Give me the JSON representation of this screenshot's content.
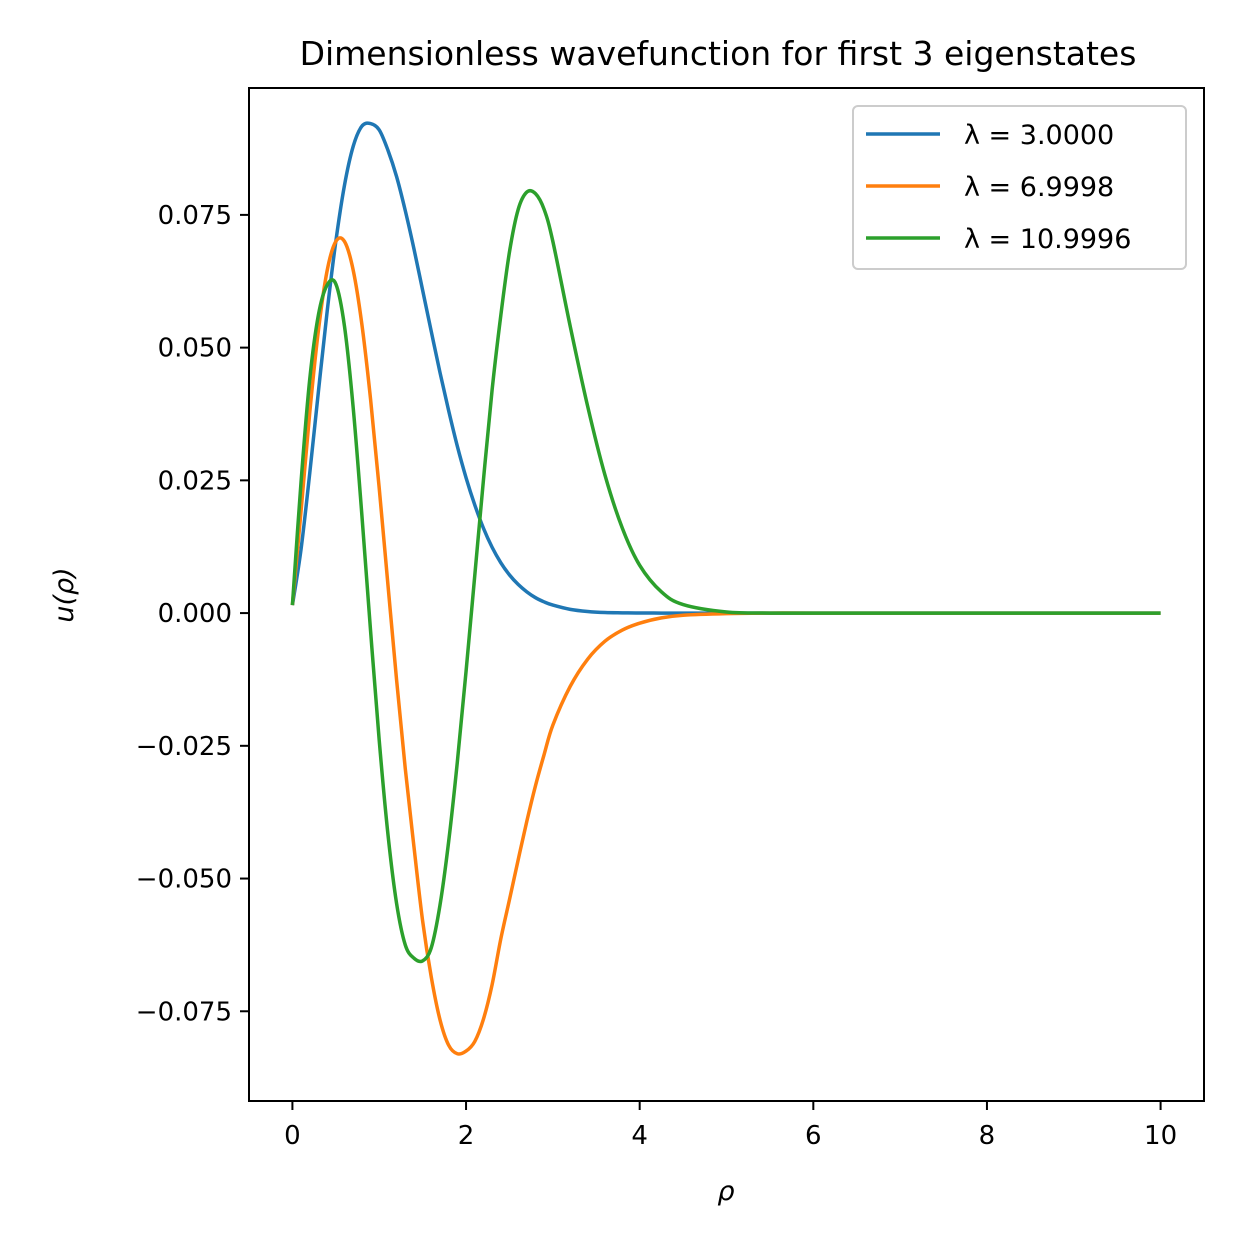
{
  "chart_data": {
    "type": "line",
    "title": "Dimensionless wavefunction for first 3 eigenstates",
    "xlabel": "ρ",
    "ylabel": "u(ρ)",
    "xlim": [
      -0.5,
      10.5
    ],
    "ylim": [
      -0.0919,
      0.0989
    ],
    "x_ticks": [
      0,
      2,
      4,
      6,
      8,
      10
    ],
    "x_tick_labels": [
      "0",
      "2",
      "4",
      "6",
      "8",
      "10"
    ],
    "y_ticks": [
      0.075,
      0.05,
      0.025,
      0.0,
      -0.025,
      -0.05,
      -0.075
    ],
    "y_tick_labels": [
      "0.075",
      "0.050",
      "0.025",
      "0.000",
      "−0.025",
      "−0.050",
      "−0.075"
    ],
    "grid": false,
    "legend_position": "top-right",
    "series": [
      {
        "name": "λ = 3.0000",
        "color": "#1f77b4",
        "x": [
          0,
          0.1,
          0.2,
          0.3,
          0.4,
          0.5,
          0.6,
          0.7,
          0.8,
          0.9,
          1.0,
          1.1,
          1.2,
          1.3,
          1.4,
          1.5,
          1.6,
          1.7,
          1.8,
          1.9,
          2.0,
          2.1,
          2.2,
          2.3,
          2.4,
          2.5,
          2.6,
          2.7,
          2.8,
          2.9,
          3.0,
          3.2,
          3.4,
          3.6,
          3.8,
          4.0,
          4.25,
          4.5,
          5.0,
          5.5,
          6.0,
          7.0,
          8.0,
          9.0,
          10.0
        ],
        "y": [
          0.0015,
          0.0121,
          0.0264,
          0.0418,
          0.0568,
          0.07,
          0.0806,
          0.0879,
          0.0917,
          0.0922,
          0.091,
          0.0872,
          0.0822,
          0.0758,
          0.0686,
          0.0608,
          0.053,
          0.0453,
          0.0381,
          0.0314,
          0.0255,
          0.0204,
          0.016,
          0.0124,
          0.0095,
          0.0072,
          0.0054,
          0.004,
          0.0029,
          0.0021,
          0.0015,
          0.0007,
          0.0003,
          0.0001,
          5e-05,
          2e-05,
          0.0,
          0.0,
          0.0,
          0.0,
          0.0,
          0.0,
          0.0,
          0.0,
          0.0
        ]
      },
      {
        "name": "λ = 6.9998",
        "color": "#ff7f0e",
        "x": [
          0,
          0.1,
          0.2,
          0.3,
          0.4,
          0.5,
          0.6,
          0.7,
          0.8,
          0.9,
          1.0,
          1.1,
          1.2,
          1.3,
          1.4,
          1.5,
          1.6,
          1.7,
          1.8,
          1.9,
          2.0,
          2.1,
          2.2,
          2.3,
          2.4,
          2.5,
          2.6,
          2.7,
          2.8,
          2.9,
          3.0,
          3.2,
          3.4,
          3.6,
          3.8,
          4.0,
          4.25,
          4.5,
          5.0,
          5.5,
          6.0,
          7.0,
          8.0,
          9.0,
          10.0
        ],
        "y": [
          0.0015,
          0.0193,
          0.0378,
          0.0533,
          0.0645,
          0.07,
          0.07,
          0.0646,
          0.0544,
          0.0403,
          0.0235,
          0.0054,
          -0.0126,
          -0.0293,
          -0.044,
          -0.058,
          -0.0686,
          -0.0766,
          -0.0814,
          -0.083,
          -0.0825,
          -0.0807,
          -0.0765,
          -0.07,
          -0.0614,
          -0.054,
          -0.0465,
          -0.0392,
          -0.0325,
          -0.0266,
          -0.0211,
          -0.0138,
          -0.0087,
          -0.0053,
          -0.0032,
          -0.0019,
          -0.0009,
          -0.0004,
          -0.0001,
          0.0,
          0.0,
          0.0,
          0.0,
          0.0,
          0.0
        ]
      },
      {
        "name": "λ = 10.9996",
        "color": "#2ca02c",
        "x": [
          0,
          0.1,
          0.2,
          0.3,
          0.4,
          0.5,
          0.6,
          0.7,
          0.8,
          0.9,
          1.0,
          1.1,
          1.2,
          1.3,
          1.4,
          1.5,
          1.6,
          1.7,
          1.8,
          1.9,
          2.0,
          2.1,
          2.2,
          2.3,
          2.4,
          2.5,
          2.6,
          2.7,
          2.8,
          2.9,
          3.0,
          3.2,
          3.4,
          3.6,
          3.8,
          4.0,
          4.25,
          4.5,
          5.0,
          5.5,
          6.0,
          7.0,
          8.0,
          9.0,
          10.0
        ],
        "y": [
          0.0015,
          0.0248,
          0.0441,
          0.0562,
          0.0618,
          0.062,
          0.054,
          0.0387,
          0.0185,
          -0.0033,
          -0.024,
          -0.0416,
          -0.0547,
          -0.0625,
          -0.065,
          -0.0655,
          -0.063,
          -0.055,
          -0.043,
          -0.028,
          -0.011,
          0.007,
          0.025,
          0.042,
          0.056,
          0.068,
          0.076,
          0.0793,
          0.079,
          0.076,
          0.07,
          0.054,
          0.039,
          0.026,
          0.016,
          0.009,
          0.004,
          0.0016,
          0.0002,
          0.0,
          0.0,
          0.0,
          0.0,
          0.0,
          0.0
        ]
      }
    ]
  }
}
